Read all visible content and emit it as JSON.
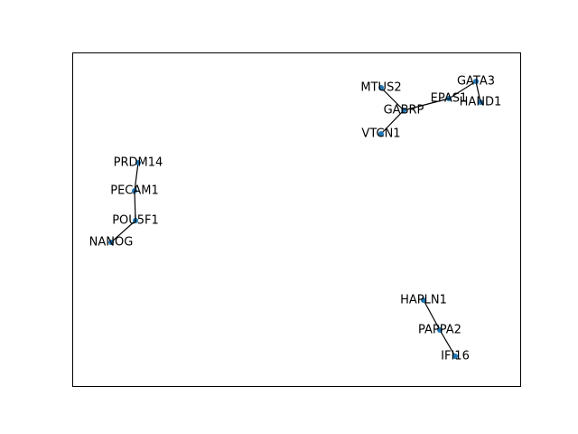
{
  "graph": {
    "node_color": "#1f77b4",
    "edge_color": "#000000",
    "nodes": [
      {
        "id": "GATA3"
      },
      {
        "id": "EPAS1"
      },
      {
        "id": "HAND1"
      },
      {
        "id": "MTUS2"
      },
      {
        "id": "GABRP"
      },
      {
        "id": "VTCN1"
      },
      {
        "id": "PRDM14"
      },
      {
        "id": "PECAM1"
      },
      {
        "id": "POU5F1"
      },
      {
        "id": "NANOG"
      },
      {
        "id": "HAPLN1"
      },
      {
        "id": "PAPPA2"
      },
      {
        "id": "IFI16"
      }
    ],
    "edges": [
      [
        "GATA3",
        "EPAS1"
      ],
      [
        "GATA3",
        "HAND1"
      ],
      [
        "EPAS1",
        "GABRP"
      ],
      [
        "MTUS2",
        "GABRP"
      ],
      [
        "GABRP",
        "VTCN1"
      ],
      [
        "PRDM14",
        "PECAM1"
      ],
      [
        "PECAM1",
        "POU5F1"
      ],
      [
        "POU5F1",
        "NANOG"
      ],
      [
        "HAPLN1",
        "PAPPA2"
      ],
      [
        "PAPPA2",
        "IFI16"
      ]
    ]
  }
}
